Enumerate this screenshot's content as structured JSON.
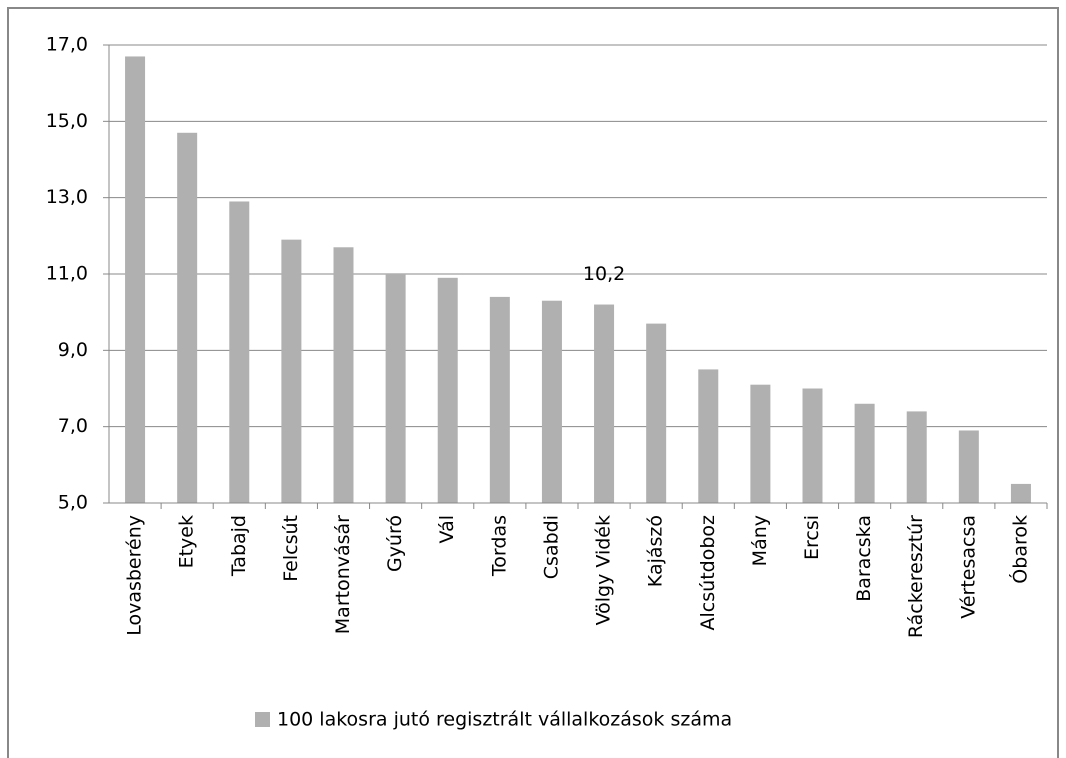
{
  "chart_data": {
    "type": "bar",
    "categories": [
      "Lovasberény",
      "Etyek",
      "Tabajd",
      "Felcsút",
      "Martonvásár",
      "Gyúró",
      "Vál",
      "Tordas",
      "Csabdi",
      "Völgy Vidék",
      "Kajászó",
      "Alcsútdoboz",
      "Mány",
      "Ercsi",
      "Baracska",
      "Ráckeresztúr",
      "Vértesacsa",
      "Óbarok"
    ],
    "series": [
      {
        "name": "100 lakosra jutó regisztrált  vállalkozások száma",
        "color": "#b0b0b0",
        "values": [
          16.7,
          14.7,
          12.9,
          11.9,
          11.7,
          11.0,
          10.9,
          10.4,
          10.3,
          10.2,
          9.7,
          8.5,
          8.1,
          8.0,
          7.6,
          7.4,
          6.9,
          5.5
        ],
        "value_labels": [
          null,
          null,
          null,
          null,
          null,
          null,
          null,
          null,
          null,
          "10,2",
          null,
          null,
          null,
          null,
          null,
          null,
          null,
          null
        ]
      }
    ],
    "ylim": [
      5,
      17
    ],
    "yticks": [
      {
        "value": 5,
        "label": "5,0"
      },
      {
        "value": 7,
        "label": "7,0"
      },
      {
        "value": 9,
        "label": "9,0"
      },
      {
        "value": 11,
        "label": "11,0"
      },
      {
        "value": 13,
        "label": "13,0"
      },
      {
        "value": 15,
        "label": "15,0"
      },
      {
        "value": 17,
        "label": "17,0"
      }
    ],
    "grid": true,
    "legend": "bottom"
  }
}
